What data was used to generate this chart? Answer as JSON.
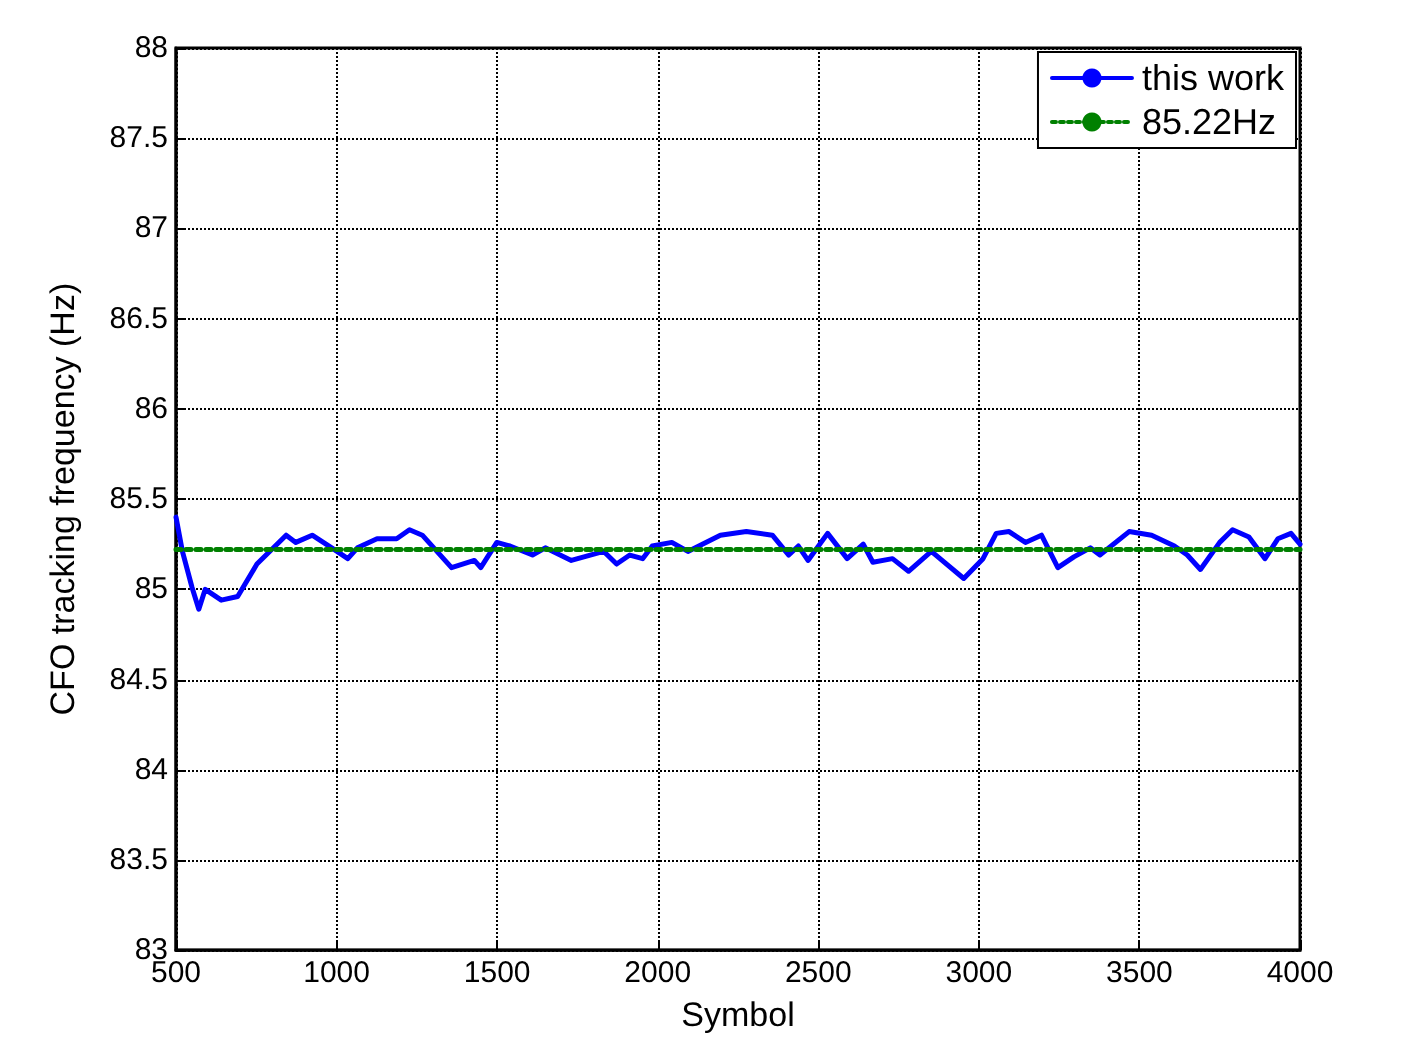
{
  "chart_data": {
    "type": "line",
    "xlabel": "Symbol",
    "ylabel": "CFO tracking frequency (Hz)",
    "xlim": [
      500,
      4000
    ],
    "xticks": [
      500,
      1000,
      1500,
      2000,
      2500,
      3000,
      3500,
      4000
    ],
    "ylim": [
      83,
      88
    ],
    "yticks": [
      83,
      83.5,
      84,
      84.5,
      85,
      85.5,
      86,
      86.5,
      87,
      87.5,
      88
    ],
    "grid": true,
    "legend": "top right",
    "marker": "none",
    "series": [
      {
        "name": "this work",
        "color": "#0000ff",
        "line_style": "solid",
        "x": [
          500,
          520,
          550,
          571,
          591,
          641,
          692,
          752,
          843,
          873,
          924,
          985,
          1035,
          1065,
          1126,
          1187,
          1227,
          1267,
          1358,
          1429,
          1449,
          1499,
          1540,
          1610,
          1650,
          1731,
          1832,
          1872,
          1913,
          1953,
          1983,
          2044,
          2094,
          2195,
          2276,
          2357,
          2408,
          2438,
          2468,
          2529,
          2590,
          2640,
          2670,
          2731,
          2781,
          2852,
          2953,
          3013,
          3054,
          3094,
          3145,
          3195,
          3246,
          3296,
          3347,
          3377,
          3468,
          3538,
          3609,
          3649,
          3690,
          3750,
          3790,
          3841,
          3891,
          3931,
          3972,
          4000
        ],
        "values": [
          85.4,
          85.21,
          85.01,
          84.89,
          85.0,
          84.94,
          84.96,
          85.14,
          85.3,
          85.26,
          85.3,
          85.23,
          85.17,
          85.23,
          85.28,
          85.28,
          85.33,
          85.3,
          85.12,
          85.16,
          85.12,
          85.26,
          85.24,
          85.19,
          85.23,
          85.16,
          85.21,
          85.14,
          85.19,
          85.17,
          85.24,
          85.26,
          85.21,
          85.3,
          85.32,
          85.3,
          85.19,
          85.24,
          85.16,
          85.31,
          85.17,
          85.25,
          85.15,
          85.17,
          85.1,
          85.21,
          85.06,
          85.17,
          85.31,
          85.32,
          85.26,
          85.3,
          85.12,
          85.18,
          85.23,
          85.19,
          85.32,
          85.3,
          85.24,
          85.19,
          85.11,
          85.26,
          85.33,
          85.29,
          85.17,
          85.28,
          85.31,
          85.25
        ]
      },
      {
        "name": "85.22Hz",
        "color": "#008000",
        "line_style": "dotted",
        "x": [
          500,
          4000
        ],
        "values": [
          85.22,
          85.22
        ]
      }
    ]
  }
}
